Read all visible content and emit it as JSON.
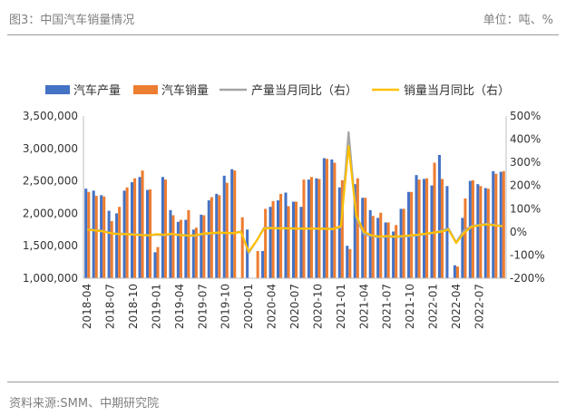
{
  "header": {
    "title": "图3：中国汽车销量情况",
    "unit": "单位：吨、%"
  },
  "source": "资料来源:SMM、中期研究院",
  "colors": {
    "production": "#4472C4",
    "sales": "#ED7D31",
    "prod_yoy": "#A5A5A5",
    "sales_yoy": "#FFC000"
  },
  "chart_data": {
    "type": "bar",
    "title": "",
    "legend_position": "top",
    "grid": false,
    "categories": [
      "2018-04",
      "2018-05",
      "2018-06",
      "2018-07",
      "2018-08",
      "2018-09",
      "2018-10",
      "2018-11",
      "2018-12",
      "2019-01",
      "2019-02",
      "2019-03",
      "2019-04",
      "2019-05",
      "2019-06",
      "2019-07",
      "2019-08",
      "2019-09",
      "2019-10",
      "2019-11",
      "2019-12",
      "2020-01",
      "2020-02",
      "2020-03",
      "2020-04",
      "2020-05",
      "2020-06",
      "2020-07",
      "2020-08",
      "2020-09",
      "2020-10",
      "2020-11",
      "2020-12",
      "2021-01",
      "2021-02",
      "2021-03",
      "2021-04",
      "2021-05",
      "2021-06",
      "2021-07",
      "2021-08",
      "2021-09",
      "2021-10",
      "2021-11",
      "2021-12",
      "2022-01",
      "2022-02",
      "2022-03",
      "2022-04",
      "2022-05",
      "2022-06",
      "2022-07",
      "2022-08",
      "2022-09",
      "2022-10"
    ],
    "tick_labels": [
      "2018-04",
      "2018-07",
      "2018-10",
      "2019-01",
      "2019-04",
      "2019-07",
      "2019-10",
      "2020-01",
      "2020-04",
      "2020-07",
      "2020-10",
      "2021-01",
      "2021-04",
      "2021-07",
      "2021-10",
      "2022-01",
      "2022-04",
      "2022-07"
    ],
    "y_left": {
      "min": 1000000,
      "max": 3500000,
      "ticks": [
        "1,000,000",
        "1,500,000",
        "2,000,000",
        "2,500,000",
        "3,000,000",
        "3,500,000"
      ]
    },
    "y_right": {
      "min": -200,
      "max": 500,
      "ticks": [
        "-200%",
        "-100%",
        "0%",
        "100%",
        "200%",
        "300%",
        "400%",
        "500%"
      ]
    },
    "series": [
      {
        "name": "汽车产量",
        "axis": "left",
        "kind": "bar",
        "values": [
          2380000,
          2350000,
          2280000,
          2040000,
          2000000,
          2350000,
          2480000,
          2560000,
          2360000,
          1400000,
          2560000,
          2050000,
          1870000,
          1900000,
          1750000,
          1980000,
          2200000,
          2300000,
          2580000,
          2680000,
          null,
          1750000,
          null,
          1420000,
          2100000,
          2200000,
          2320000,
          2180000,
          2100000,
          2520000,
          2540000,
          2850000,
          2830000,
          2400000,
          1500000,
          2450000,
          2240000,
          2050000,
          1930000,
          1860000,
          1720000,
          2070000,
          2330000,
          2590000,
          2530000,
          2430000,
          2900000,
          2420000,
          1200000,
          1930000,
          2500000,
          2450000,
          2390000,
          2650000,
          2640000
        ]
      },
      {
        "name": "汽车销量",
        "axis": "left",
        "kind": "bar",
        "values": [
          2330000,
          2270000,
          2260000,
          1880000,
          2100000,
          2400000,
          2540000,
          2660000,
          2370000,
          1480000,
          2520000,
          1970000,
          1900000,
          2050000,
          1780000,
          1970000,
          2250000,
          2280000,
          2470000,
          2660000,
          1940000,
          null,
          1420000,
          2070000,
          2190000,
          2300000,
          2110000,
          2180000,
          2520000,
          2560000,
          2530000,
          2840000,
          2780000,
          2510000,
          1450000,
          2540000,
          2240000,
          1960000,
          2010000,
          1860000,
          1820000,
          2070000,
          2330000,
          2520000,
          2540000,
          2780000,
          2530000,
          null,
          1180000,
          2230000,
          2510000,
          2420000,
          2380000,
          2610000,
          2650000
        ]
      },
      {
        "name": "产量当月同比（右）",
        "axis": "right",
        "kind": "line",
        "values": [
          12,
          8,
          5,
          -5,
          -8,
          -8,
          -10,
          -12,
          -15,
          -12,
          -15,
          -10,
          -12,
          -15,
          -18,
          -10,
          -8,
          -5,
          -5,
          -5,
          2,
          -90,
          -40,
          18,
          18,
          15,
          16,
          15,
          15,
          14,
          14,
          14,
          14,
          20,
          430,
          60,
          -10,
          -18,
          -22,
          -20,
          -22,
          -20,
          -18,
          -15,
          -10,
          -5,
          5,
          15,
          -45,
          5,
          25,
          30,
          35,
          30,
          25
        ]
      },
      {
        "name": "销量当月同比（右）",
        "axis": "right",
        "kind": "line",
        "values": [
          10,
          6,
          2,
          -5,
          -10,
          -10,
          -12,
          -14,
          -15,
          -10,
          -12,
          -8,
          -14,
          -16,
          -15,
          -8,
          -5,
          -3,
          -4,
          -6,
          0,
          -85,
          -40,
          15,
          16,
          15,
          15,
          14,
          14,
          14,
          14,
          13,
          12,
          25,
          370,
          70,
          0,
          -15,
          -20,
          -18,
          -20,
          -18,
          -15,
          -12,
          -8,
          -3,
          0,
          10,
          -48,
          -5,
          22,
          28,
          32,
          28,
          24
        ]
      }
    ]
  }
}
